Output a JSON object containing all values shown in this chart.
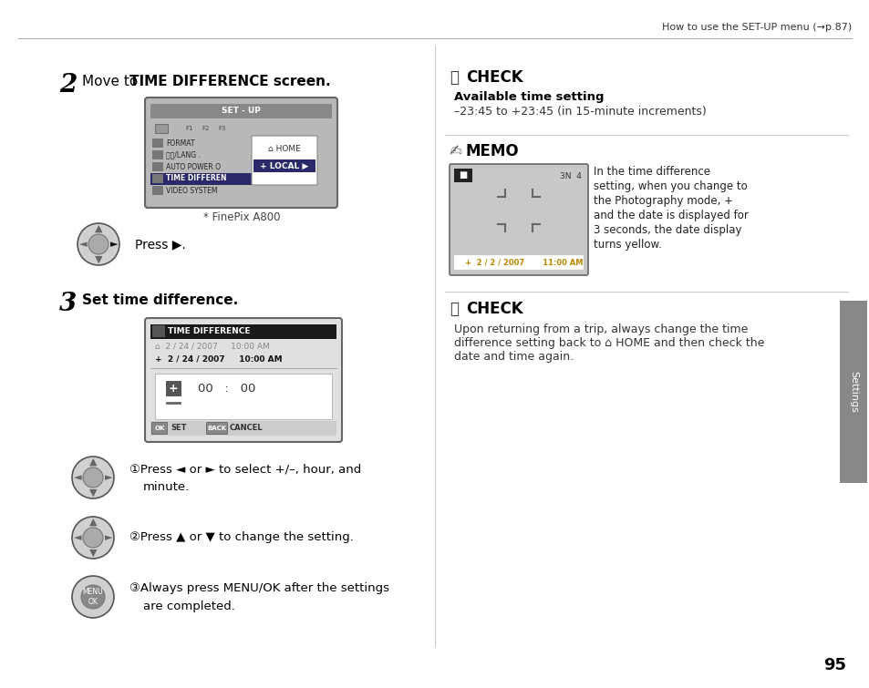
{
  "page_bg": "#ffffff",
  "header_text": "How to use the SET-UP menu (→p.87)",
  "page_number": "95",
  "sidebar_text": "Settings",
  "step2_number": "2",
  "step3_number": "3",
  "finepix_caption": "* FinePix A800",
  "check1_title": "CHECK",
  "check1_subtitle": "Available time setting",
  "check1_body": "–23:45 to +23:45 (in 15-minute increments)",
  "memo_title": "MEMO",
  "memo_body1": "In the time difference",
  "memo_body2": "setting, when you change to",
  "memo_body3": "the Photography mode, +",
  "memo_body4": "and the date is displayed for",
  "memo_body5": "3 seconds, the date display",
  "memo_body6": "turns yellow.",
  "check2_title": "CHECK",
  "check2_body1": "Upon returning from a trip, always change the time",
  "check2_body2": "difference setting back to ⌂ HOME and then check the",
  "check2_body3": "date and time again.",
  "press_text": "Press ▶.",
  "inst1a": "①Press ◄ or ► to select +/–, hour, and",
  "inst1b": "minute.",
  "inst2": "②Press ▲ or ▼ to change the setting.",
  "inst3a": "③Always press MENU/OK after the settings",
  "inst3b": "are completed."
}
